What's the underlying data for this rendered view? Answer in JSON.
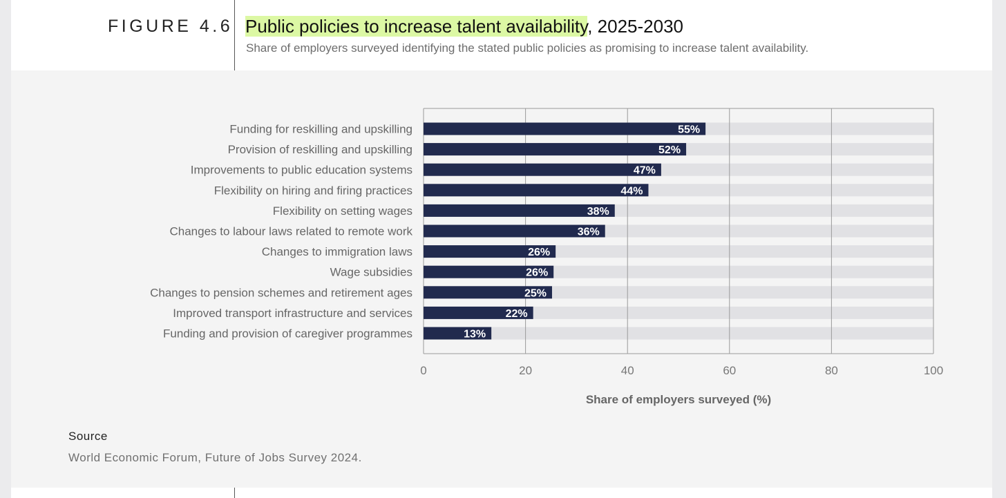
{
  "figure": {
    "label": "FIGURE 4.6",
    "title_highlight": "Public policies to increase talent availability",
    "title_rest": ", 2025-2030",
    "subtitle": "Share of employers surveyed identifying the stated public policies as promising to increase talent availability."
  },
  "chart_data": {
    "type": "bar",
    "orientation": "horizontal",
    "categories": [
      "Funding for reskilling and upskilling",
      "Provision of reskilling and upskilling",
      "Improvements to public education systems",
      "Flexibility on hiring and firing practices",
      "Flexibility on setting wages",
      "Changes to labour laws related to remote work",
      "Changes to immigration laws",
      "Wage subsidies",
      "Changes to pension schemes and retirement ages",
      "Improved transport infrastructure and services",
      "Funding and provision of caregiver programmes"
    ],
    "values": [
      55.3,
      51.5,
      46.6,
      44.1,
      37.5,
      35.6,
      25.9,
      25.5,
      25.2,
      21.5,
      13.3
    ],
    "value_labels": [
      "55%",
      "52%",
      "47%",
      "44%",
      "38%",
      "36%",
      "26%",
      "26%",
      "25%",
      "22%",
      "13%"
    ],
    "xlabel": "Share of employers surveyed (%)",
    "xlim": [
      0,
      100
    ],
    "xticks": [
      "0",
      "20",
      "40",
      "60",
      "80",
      "100"
    ],
    "grid": true,
    "colors": {
      "bar": "#212a4e",
      "track": "#e1e1e4",
      "grid": "#9a9a9a",
      "label": "#666666"
    }
  },
  "source": {
    "label": "Source",
    "text": "World Economic Forum, Future of Jobs Survey 2024."
  }
}
